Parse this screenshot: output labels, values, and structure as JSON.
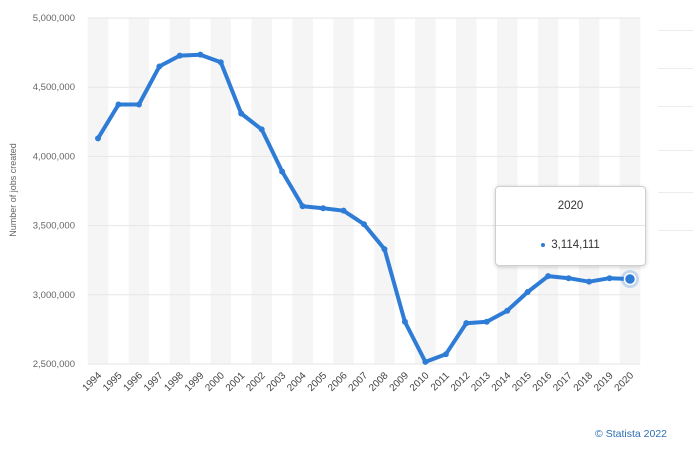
{
  "chart_data": {
    "type": "line",
    "title": "",
    "xlabel": "",
    "ylabel": "Number of jobs created",
    "x": [
      "1994",
      "1995",
      "1996",
      "1997",
      "1998",
      "1999",
      "2000",
      "2001",
      "2002",
      "2003",
      "2004",
      "2005",
      "2006",
      "2007",
      "2008",
      "2009",
      "2010",
      "2011",
      "2012",
      "2013",
      "2014",
      "2015",
      "2016",
      "2017",
      "2018",
      "2019",
      "2020"
    ],
    "series": [
      {
        "name": "",
        "values": [
          4130000,
          4375000,
          4375000,
          4650000,
          4728000,
          4735000,
          4680000,
          4310000,
          4195000,
          3890000,
          3640000,
          3625000,
          3608000,
          3510000,
          3330000,
          2805000,
          2515000,
          2570000,
          2795000,
          2805000,
          2885000,
          3020000,
          3135000,
          3120000,
          3095000,
          3120000,
          3114111
        ]
      }
    ],
    "yticks": [
      2500000,
      3000000,
      3500000,
      4000000,
      4500000,
      5000000
    ],
    "ytick_labels": [
      "2,500,000",
      "3,000,000",
      "3,500,000",
      "4,000,000",
      "4,500,000",
      "5,000,000"
    ],
    "ylim": [
      2500000,
      5000000
    ],
    "line_color": "#2e7cd6",
    "band_color": "#f5f5f5",
    "grid": "horizontal"
  },
  "tooltip": {
    "year": "2020",
    "value": "3,114,111"
  },
  "credit": "© Statista 2022"
}
